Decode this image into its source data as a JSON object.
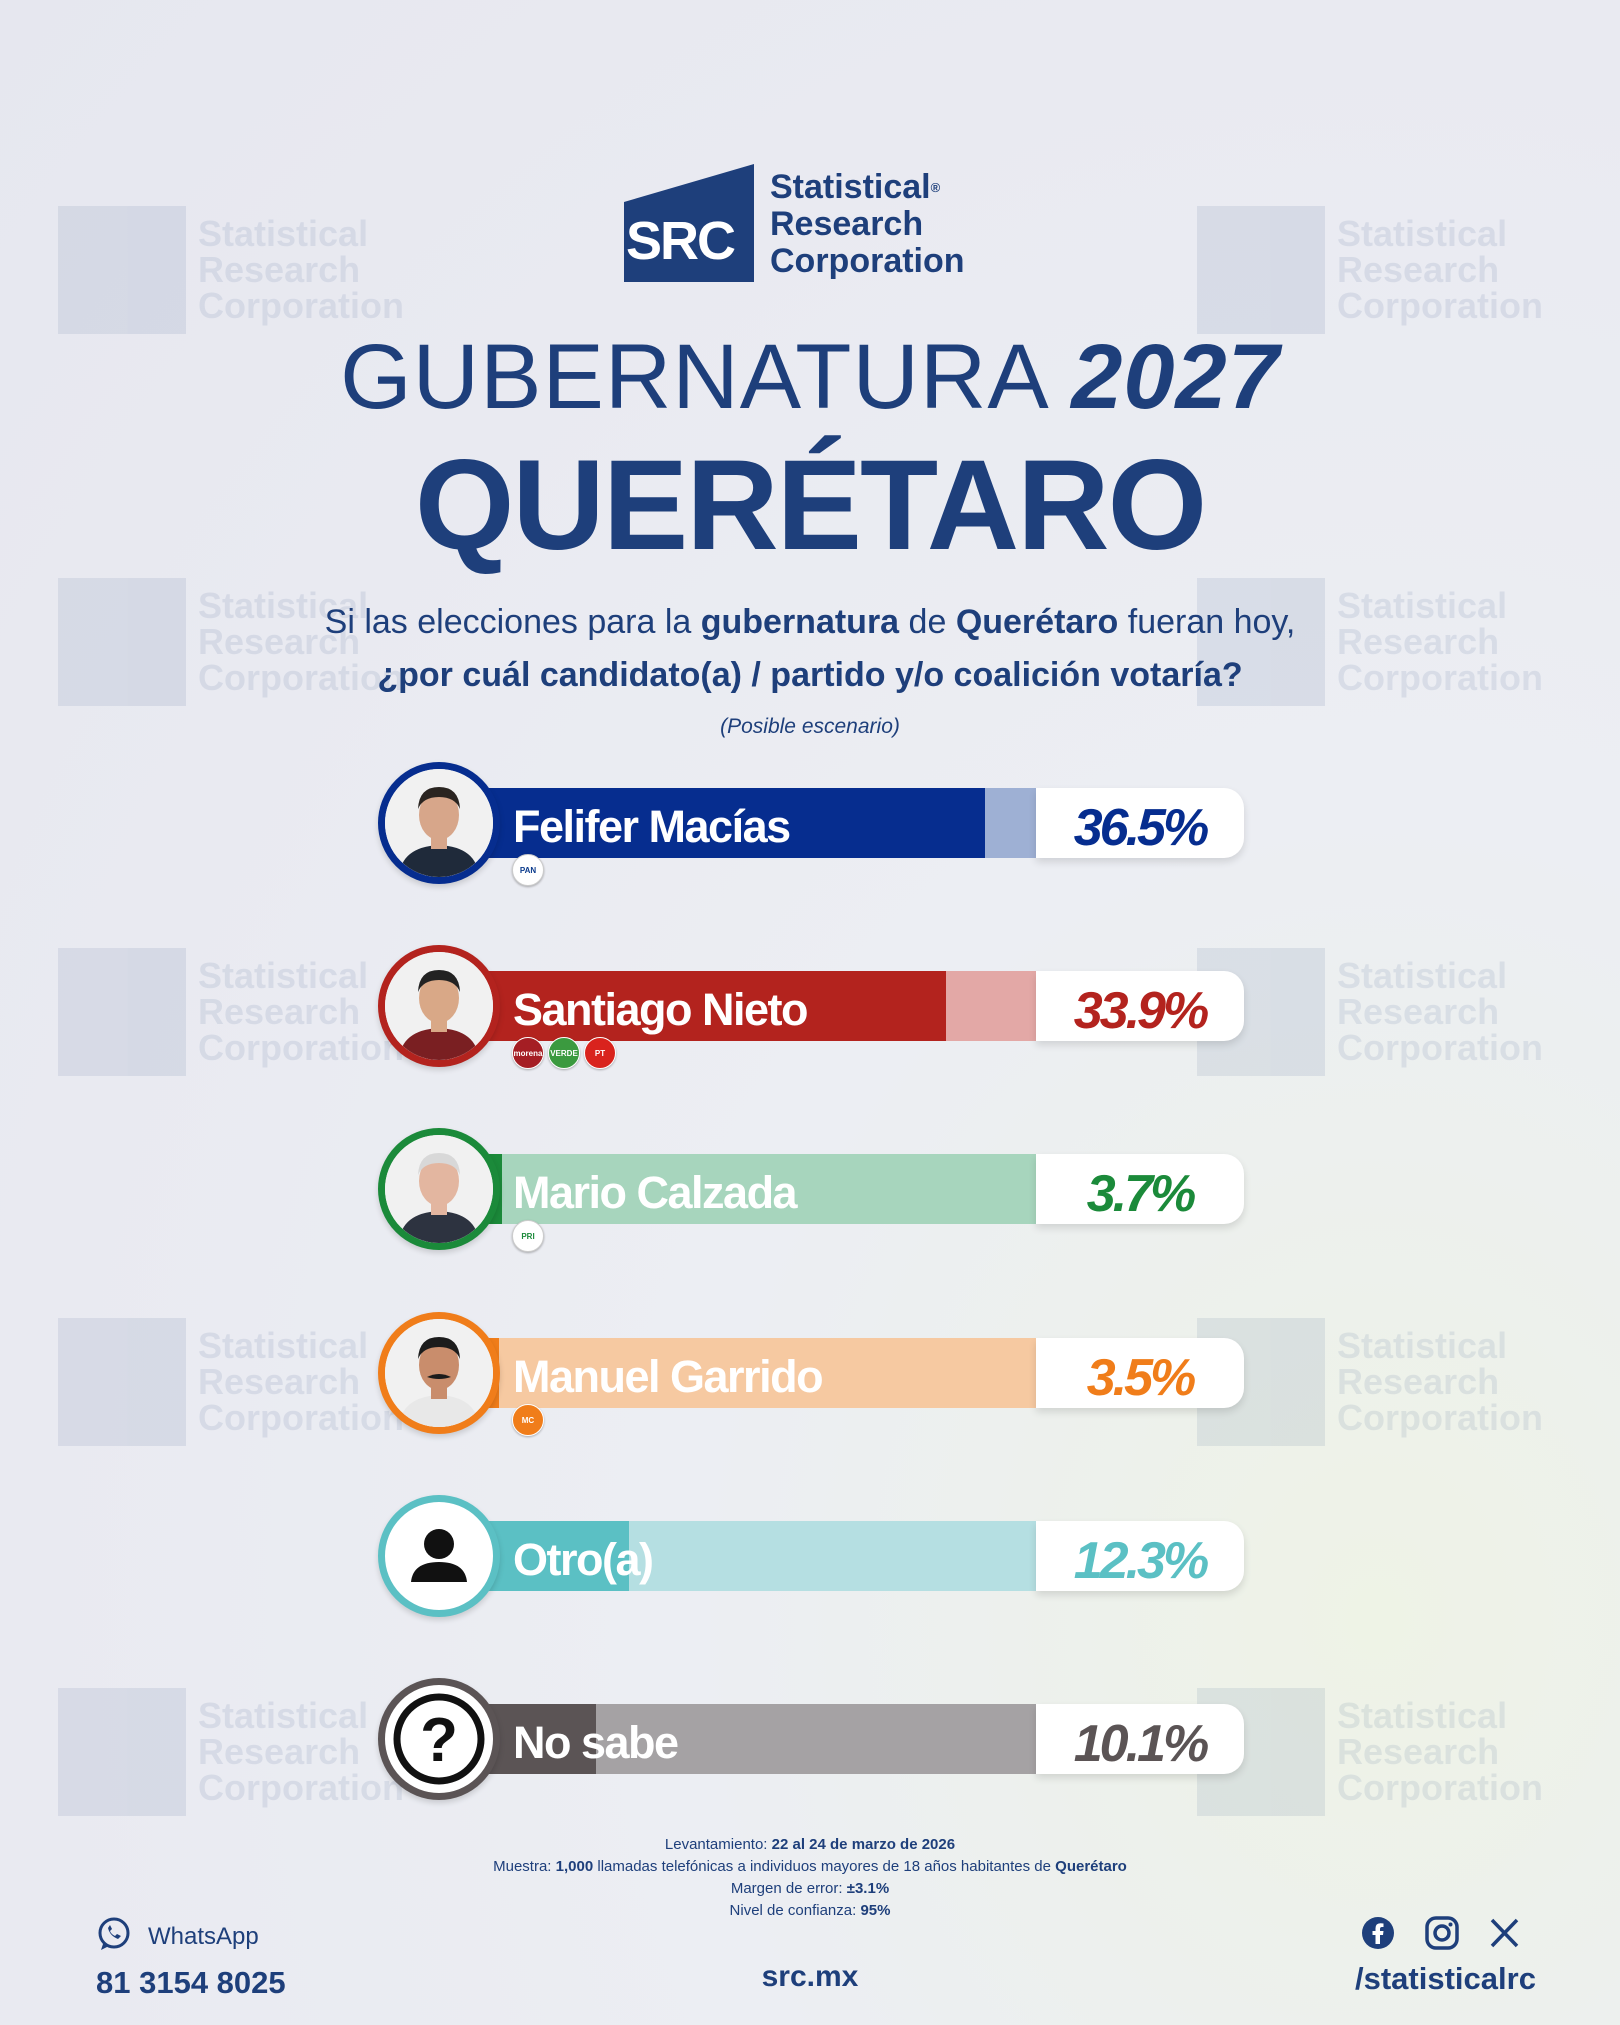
{
  "header": {
    "logo_line1": "Statistical",
    "logo_line2": "Research",
    "logo_line3": "Corporation",
    "logo_mark": "SRC",
    "title_light": "GUBERNATURA",
    "title_year": "2027",
    "state": "QUERÉTARO"
  },
  "question": {
    "p1": "Si las elecciones para la ",
    "p1_bold": "gubernatura",
    "p2": " de ",
    "p2_bold": "Querétaro",
    "p3": " fueran hoy,",
    "line2": "¿por cuál candidato(a) / partido y/o coalición votaría?",
    "scenario": "(Posible escenario)"
  },
  "chart_data": {
    "type": "bar",
    "categories": [
      "Felifer Macías",
      "Santiago Nieto",
      "Mario Calzada",
      "Manuel Garrido",
      "Otro(a)",
      "No sabe"
    ],
    "values": [
      36.5,
      33.9,
      3.7,
      3.5,
      12.3,
      10.1
    ],
    "value_labels": [
      "36.5%",
      "33.9%",
      "3.7%",
      "3.5%",
      "12.3%",
      "10.1%"
    ],
    "parties": [
      [
        "PAN"
      ],
      [
        "morena",
        "VERDE",
        "PT"
      ],
      [
        "PRI"
      ],
      [
        "MC"
      ],
      [],
      []
    ],
    "colors": [
      "#062d8f",
      "#b3231e",
      "#1b8a3a",
      "#f07d1a",
      "#5bc0c4",
      "#5b5455"
    ],
    "track_colors": [
      "#9eb0d4",
      "#e3a8a6",
      "#a7d5bd",
      "#f6c9a1",
      "#b5dfe2",
      "#a5a2a4"
    ],
    "xlim": [
      0,
      40
    ]
  },
  "methodology": {
    "l1_label": "Levantamiento: ",
    "l1_value": "22 al 24 de marzo de 2026",
    "l2_label": "Muestra: ",
    "l2_value": "1,000",
    "l2_mid": " llamadas telefónicas a individuos mayores de 18 años habitantes de ",
    "l2_place": "Querétaro",
    "l3_label": "Margen de error: ",
    "l3_value": "±3.1%",
    "l4_label": "Nivel de confianza: ",
    "l4_value": "95%"
  },
  "footer": {
    "whatsapp_label": "WhatsApp",
    "whatsapp_number": "81 3154 8025",
    "site": "src.mx",
    "social_handle": "/statisticalrc"
  }
}
